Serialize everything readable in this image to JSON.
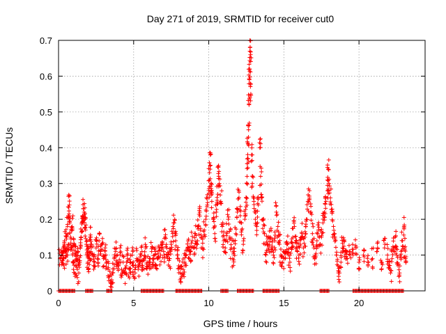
{
  "chart_data": {
    "type": "scatter",
    "title": "Day 271 of 2019, SRMTID for receiver cut0",
    "xlabel": "GPS time / hours",
    "ylabel": "SRMTID / TECUs",
    "xlim": [
      0,
      24.4
    ],
    "ylim": [
      0,
      0.7
    ],
    "x_ticks": [
      0,
      5,
      10,
      15,
      20
    ],
    "x_tick_labels": [
      "0",
      "5",
      "10",
      "15",
      "20"
    ],
    "y_ticks": [
      0,
      0.1,
      0.2,
      0.3,
      0.4,
      0.5,
      0.6,
      0.7
    ],
    "y_tick_labels": [
      "0",
      "0.1",
      "0.2",
      "0.3",
      "0.4",
      "0.5",
      "0.6",
      "0.7"
    ],
    "grid": true,
    "marker": "plus",
    "color": "#ff0000",
    "series": [
      {
        "name": "SRMTID",
        "points": [
          [
            0.1,
            0.09
          ],
          [
            0.2,
            0.1
          ],
          [
            0.25,
            0.08
          ],
          [
            0.3,
            0.12
          ],
          [
            0.35,
            0.09
          ],
          [
            0.4,
            0.14
          ],
          [
            0.45,
            0.11
          ],
          [
            0.5,
            0.16
          ],
          [
            0.55,
            0.1
          ],
          [
            0.6,
            0.18
          ],
          [
            0.65,
            0.13
          ],
          [
            0.7,
            0.21
          ],
          [
            0.72,
            0.24
          ],
          [
            0.75,
            0.19
          ],
          [
            0.8,
            0.15
          ],
          [
            0.85,
            0.12
          ],
          [
            0.9,
            0.18
          ],
          [
            0.95,
            0.1
          ],
          [
            1.0,
            0.08
          ],
          [
            1.05,
            0.13
          ],
          [
            1.1,
            0.1
          ],
          [
            1.15,
            0.07
          ],
          [
            1.2,
            0.09
          ],
          [
            1.25,
            0.06
          ],
          [
            1.3,
            0.11
          ],
          [
            1.35,
            0.05
          ],
          [
            1.4,
            0.08
          ],
          [
            1.45,
            0.12
          ],
          [
            1.5,
            0.15
          ],
          [
            1.55,
            0.19
          ],
          [
            1.6,
            0.21
          ],
          [
            1.65,
            0.23
          ],
          [
            1.7,
            0.22
          ],
          [
            1.75,
            0.2
          ],
          [
            1.8,
            0.17
          ],
          [
            1.85,
            0.13
          ],
          [
            1.9,
            0.1
          ],
          [
            1.95,
            0.08
          ],
          [
            2.0,
            0.12
          ],
          [
            2.05,
            0.09
          ],
          [
            2.1,
            0.15
          ],
          [
            2.15,
            0.11
          ],
          [
            2.2,
            0.13
          ],
          [
            2.3,
            0.1
          ],
          [
            2.4,
            0.08
          ],
          [
            2.5,
            0.12
          ],
          [
            2.6,
            0.09
          ],
          [
            2.7,
            0.14
          ],
          [
            2.8,
            0.11
          ],
          [
            2.9,
            0.13
          ],
          [
            3.0,
            0.09
          ],
          [
            3.1,
            0.12
          ],
          [
            3.2,
            0.08
          ],
          [
            3.3,
            0.06
          ],
          [
            3.4,
            0.04
          ],
          [
            3.5,
            0.02
          ],
          [
            3.6,
            0.05
          ],
          [
            3.7,
            0.09
          ],
          [
            3.8,
            0.11
          ],
          [
            3.9,
            0.08
          ],
          [
            4.0,
            0.07
          ],
          [
            4.1,
            0.1
          ],
          [
            4.2,
            0.06
          ],
          [
            4.3,
            0.08
          ],
          [
            4.4,
            0.05
          ],
          [
            4.5,
            0.07
          ],
          [
            4.6,
            0.09
          ],
          [
            4.7,
            0.06
          ],
          [
            4.8,
            0.08
          ],
          [
            4.9,
            0.1
          ],
          [
            5.0,
            0.07
          ],
          [
            5.1,
            0.05
          ],
          [
            5.2,
            0.09
          ],
          [
            5.3,
            0.06
          ],
          [
            5.4,
            0.08
          ],
          [
            5.5,
            0.1
          ],
          [
            5.6,
            0.07
          ],
          [
            5.7,
            0.09
          ],
          [
            5.8,
            0.12
          ],
          [
            5.9,
            0.08
          ],
          [
            6.0,
            0.07
          ],
          [
            6.1,
            0.09
          ],
          [
            6.2,
            0.11
          ],
          [
            6.3,
            0.08
          ],
          [
            6.4,
            0.1
          ],
          [
            6.5,
            0.07
          ],
          [
            6.6,
            0.09
          ],
          [
            6.7,
            0.12
          ],
          [
            6.8,
            0.1
          ],
          [
            6.9,
            0.13
          ],
          [
            7.0,
            0.11
          ],
          [
            7.1,
            0.15
          ],
          [
            7.2,
            0.12
          ],
          [
            7.3,
            0.1
          ],
          [
            7.4,
            0.09
          ],
          [
            7.5,
            0.13
          ],
          [
            7.6,
            0.16
          ],
          [
            7.7,
            0.19
          ],
          [
            7.8,
            0.14
          ],
          [
            7.9,
            0.1
          ],
          [
            8.0,
            0.07
          ],
          [
            8.1,
            0.05
          ],
          [
            8.2,
            0.04
          ],
          [
            8.3,
            0.06
          ],
          [
            8.4,
            0.08
          ],
          [
            8.5,
            0.1
          ],
          [
            8.6,
            0.12
          ],
          [
            8.7,
            0.09
          ],
          [
            8.8,
            0.11
          ],
          [
            8.9,
            0.14
          ],
          [
            9.0,
            0.12
          ],
          [
            9.1,
            0.16
          ],
          [
            9.2,
            0.13
          ],
          [
            9.3,
            0.18
          ],
          [
            9.4,
            0.22
          ],
          [
            9.5,
            0.15
          ],
          [
            9.6,
            0.12
          ],
          [
            9.7,
            0.17
          ],
          [
            9.8,
            0.2
          ],
          [
            9.9,
            0.24
          ],
          [
            10.0,
            0.28
          ],
          [
            10.05,
            0.33
          ],
          [
            10.1,
            0.38
          ],
          [
            10.15,
            0.3
          ],
          [
            10.2,
            0.25
          ],
          [
            10.3,
            0.2
          ],
          [
            10.4,
            0.16
          ],
          [
            10.5,
            0.22
          ],
          [
            10.6,
            0.27
          ],
          [
            10.65,
            0.35
          ],
          [
            10.7,
            0.3
          ],
          [
            10.8,
            0.25
          ],
          [
            10.9,
            0.18
          ],
          [
            11.0,
            0.14
          ],
          [
            11.1,
            0.12
          ],
          [
            11.2,
            0.16
          ],
          [
            11.3,
            0.2
          ],
          [
            11.4,
            0.15
          ],
          [
            11.5,
            0.12
          ],
          [
            11.6,
            0.09
          ],
          [
            11.7,
            0.11
          ],
          [
            11.8,
            0.16
          ],
          [
            11.9,
            0.22
          ],
          [
            12.0,
            0.28
          ],
          [
            12.1,
            0.21
          ],
          [
            12.2,
            0.17
          ],
          [
            12.3,
            0.13
          ],
          [
            12.4,
            0.2
          ],
          [
            12.5,
            0.26
          ],
          [
            12.55,
            0.32
          ],
          [
            12.6,
            0.37
          ],
          [
            12.62,
            0.41
          ],
          [
            12.65,
            0.45
          ],
          [
            12.68,
            0.52
          ],
          [
            12.7,
            0.59
          ],
          [
            12.72,
            0.62
          ],
          [
            12.75,
            0.68
          ],
          [
            12.78,
            0.66
          ],
          [
            12.8,
            0.55
          ],
          [
            12.85,
            0.38
          ],
          [
            12.9,
            0.3
          ],
          [
            13.0,
            0.25
          ],
          [
            13.1,
            0.2
          ],
          [
            13.2,
            0.18
          ],
          [
            13.3,
            0.24
          ],
          [
            13.4,
            0.4
          ],
          [
            13.45,
            0.32
          ],
          [
            13.5,
            0.26
          ],
          [
            13.6,
            0.2
          ],
          [
            13.7,
            0.16
          ],
          [
            13.8,
            0.1
          ],
          [
            13.9,
            0.13
          ],
          [
            14.0,
            0.12
          ],
          [
            14.1,
            0.15
          ],
          [
            14.2,
            0.12
          ],
          [
            14.3,
            0.1
          ],
          [
            14.4,
            0.14
          ],
          [
            14.5,
            0.22
          ],
          [
            14.6,
            0.18
          ],
          [
            14.7,
            0.13
          ],
          [
            14.8,
            0.1
          ],
          [
            14.9,
            0.08
          ],
          [
            15.0,
            0.09
          ],
          [
            15.1,
            0.11
          ],
          [
            15.2,
            0.13
          ],
          [
            15.3,
            0.1
          ],
          [
            15.4,
            0.08
          ],
          [
            15.5,
            0.12
          ],
          [
            15.6,
            0.15
          ],
          [
            15.7,
            0.18
          ],
          [
            15.8,
            0.14
          ],
          [
            15.9,
            0.11
          ],
          [
            16.0,
            0.1
          ],
          [
            16.1,
            0.13
          ],
          [
            16.2,
            0.16
          ],
          [
            16.3,
            0.12
          ],
          [
            16.4,
            0.15
          ],
          [
            16.5,
            0.2
          ],
          [
            16.6,
            0.25
          ],
          [
            16.7,
            0.28
          ],
          [
            16.8,
            0.22
          ],
          [
            16.9,
            0.16
          ],
          [
            17.0,
            0.12
          ],
          [
            17.1,
            0.1
          ],
          [
            17.2,
            0.14
          ],
          [
            17.3,
            0.17
          ],
          [
            17.4,
            0.13
          ],
          [
            17.5,
            0.15
          ],
          [
            17.6,
            0.19
          ],
          [
            17.7,
            0.22
          ],
          [
            17.8,
            0.25
          ],
          [
            17.9,
            0.28
          ],
          [
            17.95,
            0.34
          ],
          [
            18.0,
            0.3
          ],
          [
            18.1,
            0.26
          ],
          [
            18.2,
            0.22
          ],
          [
            18.3,
            0.18
          ],
          [
            18.4,
            0.15
          ],
          [
            18.5,
            0.1
          ],
          [
            18.6,
            0.07
          ],
          [
            18.7,
            0.05
          ],
          [
            18.8,
            0.08
          ],
          [
            18.9,
            0.12
          ],
          [
            19.0,
            0.14
          ],
          [
            19.1,
            0.11
          ],
          [
            19.2,
            0.09
          ],
          [
            19.4,
            0.11
          ],
          [
            19.6,
            0.1
          ],
          [
            19.8,
            0.12
          ],
          [
            20.0,
            0.08
          ],
          [
            20.3,
            0.1
          ],
          [
            20.6,
            0.07
          ],
          [
            20.9,
            0.09
          ],
          [
            21.2,
            0.11
          ],
          [
            21.5,
            0.08
          ],
          [
            21.7,
            0.12
          ],
          [
            21.9,
            0.1
          ],
          [
            22.0,
            0.07
          ],
          [
            22.1,
            0.05
          ],
          [
            22.2,
            0.09
          ],
          [
            22.3,
            0.12
          ],
          [
            22.4,
            0.15
          ],
          [
            22.5,
            0.1
          ],
          [
            22.6,
            0.07
          ],
          [
            22.7,
            0.05
          ],
          [
            22.8,
            0.11
          ],
          [
            22.9,
            0.14
          ],
          [
            23.0,
            0.18
          ],
          [
            23.05,
            0.12
          ],
          [
            23.1,
            0.09
          ]
        ]
      }
    ],
    "zero_bands": [
      [
        0.0,
        1.1
      ],
      [
        1.8,
        2.3
      ],
      [
        3.2,
        3.6
      ],
      [
        5.5,
        7.0
      ],
      [
        7.8,
        9.6
      ],
      [
        10.8,
        11.3
      ],
      [
        11.9,
        13.0
      ],
      [
        13.6,
        14.7
      ],
      [
        17.4,
        18.0
      ],
      [
        19.6,
        23.0
      ]
    ]
  }
}
